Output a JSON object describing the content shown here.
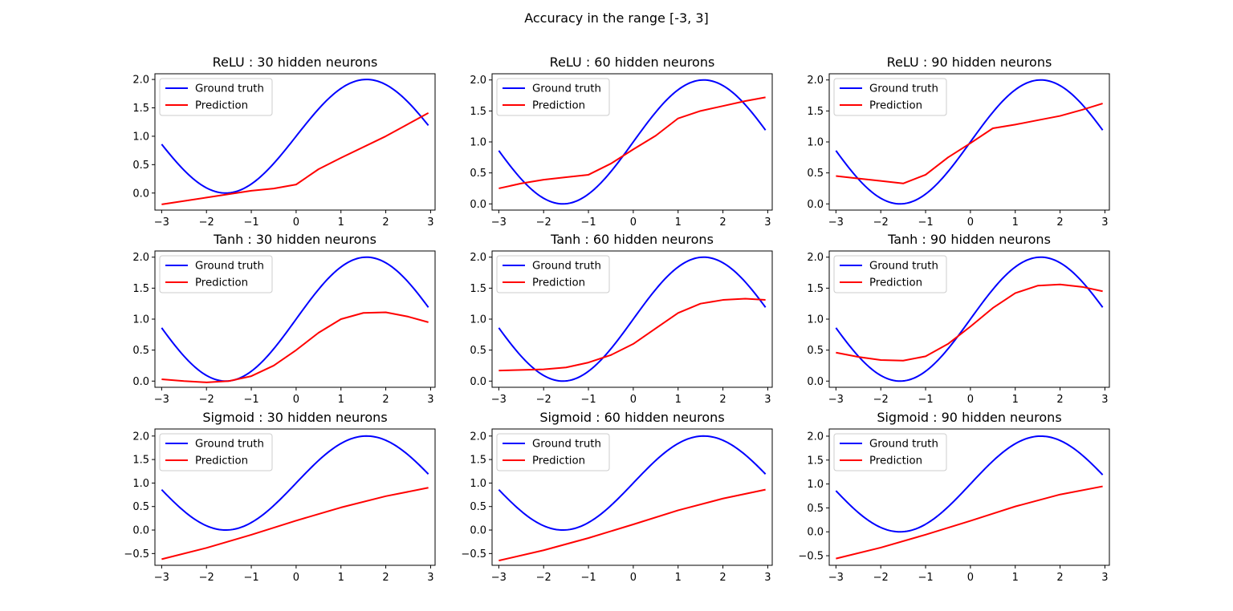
{
  "figure": {
    "suptitle": "Accuracy in the range [-3, 3]"
  },
  "colors": {
    "ground_truth": "#0000ff",
    "prediction": "#ff0000"
  },
  "chart_data": [
    {
      "type": "line",
      "title": "ReLU : 30 hidden neurons",
      "xlim": [
        -3.15,
        3.1
      ],
      "ylim": [
        -0.3,
        2.1
      ],
      "xticks": [
        -3,
        -2,
        -1,
        0,
        1,
        2,
        3
      ],
      "yticks": [
        0.0,
        0.5,
        1.0,
        1.5,
        2.0
      ],
      "legend": "upper-left",
      "series": [
        {
          "name": "Ground truth",
          "color": "#0000ff",
          "function": "1 + sin(x)",
          "x_range": [
            -3,
            2.95
          ]
        },
        {
          "name": "Prediction",
          "color": "#ff0000",
          "x": [
            -3,
            -2,
            -1,
            -0.5,
            0,
            0.5,
            1,
            2,
            2.95
          ],
          "y": [
            -0.2,
            -0.08,
            0.04,
            0.08,
            0.15,
            0.42,
            0.62,
            1.0,
            1.41
          ]
        }
      ]
    },
    {
      "type": "line",
      "title": "ReLU : 60 hidden neurons",
      "xlim": [
        -3.15,
        3.1
      ],
      "ylim": [
        -0.1,
        2.1
      ],
      "xticks": [
        -3,
        -2,
        -1,
        0,
        1,
        2,
        3
      ],
      "yticks": [
        0.0,
        0.5,
        1.0,
        1.5,
        2.0
      ],
      "legend": "upper-left",
      "series": [
        {
          "name": "Ground truth",
          "color": "#0000ff",
          "function": "1 + sin(x)",
          "x_range": [
            -3,
            2.95
          ]
        },
        {
          "name": "Prediction",
          "color": "#ff0000",
          "x": [
            -3,
            -2.5,
            -2,
            -1.5,
            -1,
            -0.5,
            0,
            0.5,
            1,
            1.5,
            2,
            2.5,
            2.95
          ],
          "y": [
            0.25,
            0.33,
            0.39,
            0.43,
            0.47,
            0.65,
            0.88,
            1.1,
            1.38,
            1.5,
            1.58,
            1.66,
            1.72
          ]
        }
      ]
    },
    {
      "type": "line",
      "title": "ReLU : 90 hidden neurons",
      "xlim": [
        -3.15,
        3.1
      ],
      "ylim": [
        -0.1,
        2.1
      ],
      "xticks": [
        -3,
        -2,
        -1,
        0,
        1,
        2,
        3
      ],
      "yticks": [
        0.0,
        0.5,
        1.0,
        1.5,
        2.0
      ],
      "legend": "upper-left",
      "series": [
        {
          "name": "Ground truth",
          "color": "#0000ff",
          "function": "1 + sin(x)",
          "x_range": [
            -3,
            2.95
          ]
        },
        {
          "name": "Prediction",
          "color": "#ff0000",
          "x": [
            -3,
            -2.5,
            -2,
            -1.5,
            -1,
            -0.5,
            0,
            0.5,
            1,
            1.5,
            2,
            2.5,
            2.95
          ],
          "y": [
            0.45,
            0.41,
            0.37,
            0.33,
            0.47,
            0.75,
            0.98,
            1.22,
            1.28,
            1.35,
            1.42,
            1.52,
            1.62
          ]
        }
      ]
    },
    {
      "type": "line",
      "title": "Tanh : 30 hidden neurons",
      "xlim": [
        -3.15,
        3.1
      ],
      "ylim": [
        -0.1,
        2.1
      ],
      "xticks": [
        -3,
        -2,
        -1,
        0,
        1,
        2,
        3
      ],
      "yticks": [
        0.0,
        0.5,
        1.0,
        1.5,
        2.0
      ],
      "legend": "upper-left",
      "series": [
        {
          "name": "Ground truth",
          "color": "#0000ff",
          "function": "1 + sin(x)",
          "x_range": [
            -3,
            2.95
          ]
        },
        {
          "name": "Prediction",
          "color": "#ff0000",
          "x": [
            -3,
            -2.5,
            -2,
            -1.5,
            -1,
            -0.5,
            0,
            0.5,
            1,
            1.5,
            2,
            2.5,
            2.95
          ],
          "y": [
            0.03,
            0.0,
            -0.02,
            0.0,
            0.08,
            0.25,
            0.5,
            0.78,
            1.0,
            1.1,
            1.11,
            1.04,
            0.95
          ]
        }
      ]
    },
    {
      "type": "line",
      "title": "Tanh : 60 hidden neurons",
      "xlim": [
        -3.15,
        3.1
      ],
      "ylim": [
        -0.1,
        2.1
      ],
      "xticks": [
        -3,
        -2,
        -1,
        0,
        1,
        2,
        3
      ],
      "yticks": [
        0.0,
        0.5,
        1.0,
        1.5,
        2.0
      ],
      "legend": "upper-left",
      "series": [
        {
          "name": "Ground truth",
          "color": "#0000ff",
          "function": "1 + sin(x)",
          "x_range": [
            -3,
            2.95
          ]
        },
        {
          "name": "Prediction",
          "color": "#ff0000",
          "x": [
            -3,
            -2.5,
            -2,
            -1.5,
            -1,
            -0.5,
            0,
            0.5,
            1,
            1.5,
            2,
            2.5,
            2.95
          ],
          "y": [
            0.17,
            0.18,
            0.19,
            0.22,
            0.3,
            0.42,
            0.6,
            0.85,
            1.1,
            1.25,
            1.31,
            1.33,
            1.31
          ]
        }
      ]
    },
    {
      "type": "line",
      "title": "Tanh : 90 hidden neurons",
      "xlim": [
        -3.15,
        3.1
      ],
      "ylim": [
        -0.1,
        2.1
      ],
      "xticks": [
        -3,
        -2,
        -1,
        0,
        1,
        2,
        3
      ],
      "yticks": [
        0.0,
        0.5,
        1.0,
        1.5,
        2.0
      ],
      "legend": "upper-left",
      "series": [
        {
          "name": "Ground truth",
          "color": "#0000ff",
          "function": "1 + sin(x)",
          "x_range": [
            -3,
            2.95
          ]
        },
        {
          "name": "Prediction",
          "color": "#ff0000",
          "x": [
            -3,
            -2.5,
            -2,
            -1.5,
            -1,
            -0.5,
            0,
            0.5,
            1,
            1.5,
            2,
            2.5,
            2.95
          ],
          "y": [
            0.46,
            0.39,
            0.34,
            0.33,
            0.4,
            0.6,
            0.88,
            1.18,
            1.42,
            1.54,
            1.56,
            1.52,
            1.45
          ]
        }
      ]
    },
    {
      "type": "line",
      "title": "Sigmoid : 30 hidden neurons",
      "xlim": [
        -3.15,
        3.1
      ],
      "ylim": [
        -0.75,
        2.15
      ],
      "xticks": [
        -3,
        -2,
        -1,
        0,
        1,
        2,
        3
      ],
      "yticks": [
        -0.5,
        0.0,
        0.5,
        1.0,
        1.5,
        2.0
      ],
      "legend": "upper-left",
      "series": [
        {
          "name": "Ground truth",
          "color": "#0000ff",
          "function": "1 + sin(x)",
          "x_range": [
            -3,
            2.95
          ]
        },
        {
          "name": "Prediction",
          "color": "#ff0000",
          "x": [
            -3,
            -2,
            -1,
            0,
            1,
            2,
            2.95
          ],
          "y": [
            -0.62,
            -0.38,
            -0.1,
            0.2,
            0.48,
            0.72,
            0.9
          ]
        }
      ]
    },
    {
      "type": "line",
      "title": "Sigmoid : 60 hidden neurons",
      "xlim": [
        -3.15,
        3.1
      ],
      "ylim": [
        -0.75,
        2.15
      ],
      "xticks": [
        -3,
        -2,
        -1,
        0,
        1,
        2,
        3
      ],
      "yticks": [
        -0.5,
        0.0,
        0.5,
        1.0,
        1.5,
        2.0
      ],
      "legend": "upper-left",
      "series": [
        {
          "name": "Ground truth",
          "color": "#0000ff",
          "function": "1 + sin(x)",
          "x_range": [
            -3,
            2.95
          ]
        },
        {
          "name": "Prediction",
          "color": "#ff0000",
          "x": [
            -3,
            -2,
            -1,
            0,
            1,
            2,
            2.95
          ],
          "y": [
            -0.65,
            -0.43,
            -0.17,
            0.12,
            0.42,
            0.67,
            0.86
          ]
        }
      ]
    },
    {
      "type": "line",
      "title": "Sigmoid : 90 hidden neurons",
      "xlim": [
        -3.15,
        3.1
      ],
      "ylim": [
        -0.7,
        2.15
      ],
      "xticks": [
        -3,
        -2,
        -1,
        0,
        1,
        2,
        3
      ],
      "yticks": [
        -0.5,
        0.0,
        0.5,
        1.0,
        1.5,
        2.0
      ],
      "legend": "upper-left",
      "series": [
        {
          "name": "Ground truth",
          "color": "#0000ff",
          "function": "1 + sin(x)",
          "x_range": [
            -3,
            2.95
          ]
        },
        {
          "name": "Prediction",
          "color": "#ff0000",
          "x": [
            -3,
            -2,
            -1,
            0,
            1,
            2,
            2.95
          ],
          "y": [
            -0.56,
            -0.33,
            -0.06,
            0.23,
            0.53,
            0.78,
            0.95
          ]
        }
      ]
    }
  ]
}
